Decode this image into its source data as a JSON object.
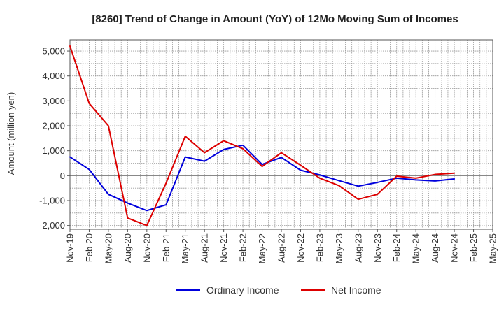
{
  "chart_data": {
    "type": "line",
    "title": "[8260]  Trend of Change in Amount (YoY) of 12Mo Moving Sum of Incomes",
    "ylabel": "Amount (million yen)",
    "xlabel": "",
    "ylim": [
      -2150,
      5450
    ],
    "yticks": [
      -2000,
      -1000,
      0,
      1000,
      2000,
      3000,
      4000,
      5000
    ],
    "ytick_labels": [
      "-2,000",
      "-1,000",
      "0",
      "1,000",
      "2,000",
      "3,000",
      "4,000",
      "5,000"
    ],
    "categories": [
      "Nov-19",
      "Feb-20",
      "May-20",
      "Aug-20",
      "Nov-20",
      "Feb-21",
      "May-21",
      "Aug-21",
      "Nov-21",
      "Feb-22",
      "May-22",
      "Aug-22",
      "Nov-22",
      "Feb-23",
      "May-23",
      "Aug-23",
      "Nov-23",
      "Feb-24",
      "May-24",
      "Aug-24",
      "Nov-24",
      "Feb-25",
      "May-25"
    ],
    "grid": true,
    "legend_position": "bottom",
    "series": [
      {
        "name": "Ordinary Income",
        "color": "#0000dd",
        "values": [
          750,
          250,
          -750,
          -1100,
          -1400,
          -1170,
          750,
          580,
          1050,
          1220,
          450,
          730,
          220,
          30,
          -200,
          -420,
          -270,
          -100,
          -170,
          -210,
          -130,
          null,
          null
        ]
      },
      {
        "name": "Net Income",
        "color": "#dd0000",
        "values": [
          5200,
          2900,
          2000,
          -1700,
          -2000,
          -300,
          1580,
          920,
          1400,
          1080,
          370,
          920,
          420,
          -100,
          -400,
          -950,
          -750,
          -20,
          -100,
          50,
          100,
          null,
          null
        ]
      }
    ]
  }
}
